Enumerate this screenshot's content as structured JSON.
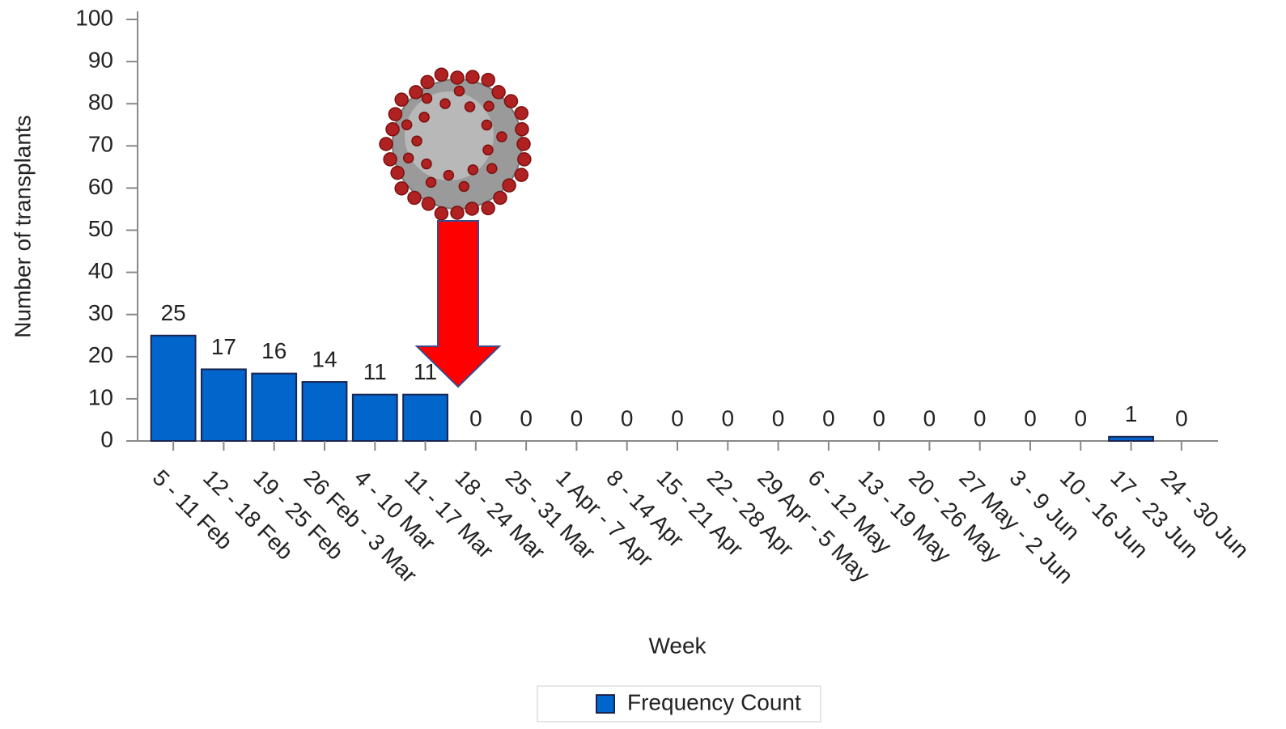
{
  "chart_data": {
    "type": "bar",
    "categories": [
      "5 - 11 Feb",
      "12 - 18 Feb",
      "19 - 25 Feb",
      "26 Feb - 3 Mar",
      "4 - 10 Mar",
      "11 - 17 Mar",
      "18 - 24 Mar",
      "25 - 31 Mar",
      "1 Apr - 7 Apr",
      "8 - 14 Apr",
      "15 - 21 Apr",
      "22 - 28 Apr",
      "29 Apr - 5 May",
      "6 - 12 May",
      "13 - 19 May",
      "20 - 26 May",
      "27 May - 2 Jun",
      "3 - 9 Jun",
      "10 - 16 Jun",
      "17 - 23 Jun",
      "24 - 30 Jun"
    ],
    "series": [
      {
        "name": "Frequency Count",
        "color": "#0066cc",
        "values": [
          25,
          17,
          16,
          14,
          11,
          11,
          0,
          0,
          0,
          0,
          0,
          0,
          0,
          0,
          0,
          0,
          0,
          0,
          0,
          1,
          0
        ]
      }
    ],
    "ylim": [
      0,
      100
    ],
    "yticks": [
      0,
      10,
      20,
      30,
      40,
      50,
      60,
      70,
      80,
      90,
      100
    ],
    "y_label": "Number of transplants",
    "x_label": "Week",
    "legend": "bottom"
  }
}
